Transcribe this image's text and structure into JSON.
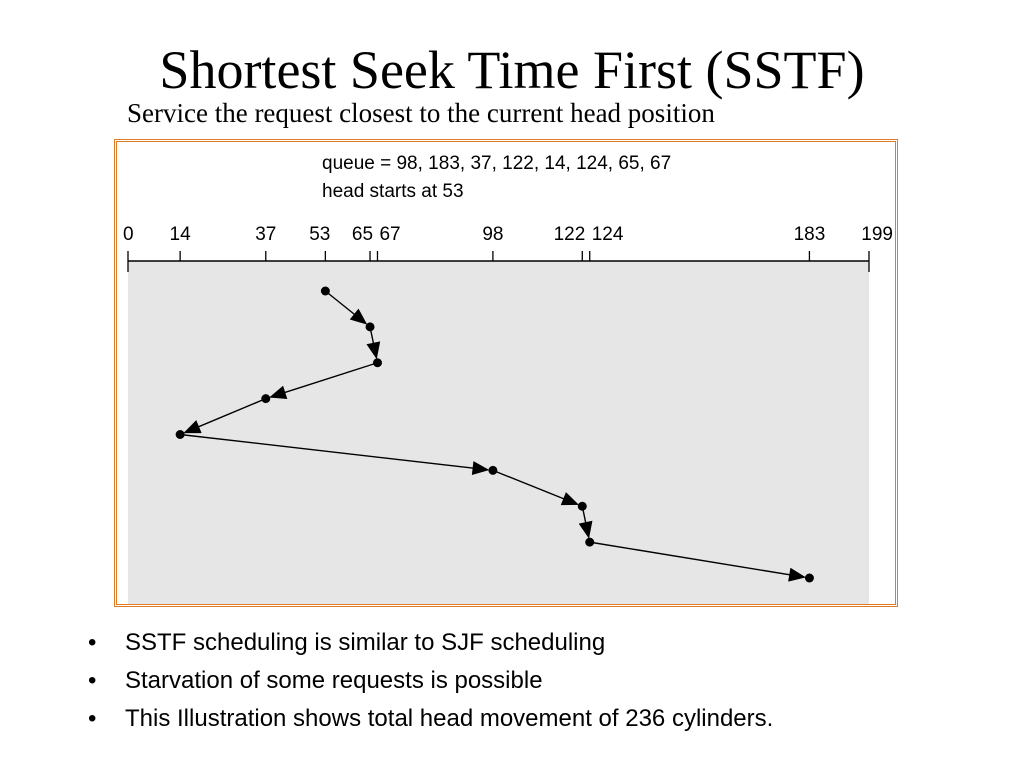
{
  "slide": {
    "title": "Shortest Seek Time First (SSTF)",
    "subtitle": "Service the request closest to the current head position",
    "bullets": [
      "SSTF scheduling is similar to SJF scheduling",
      "Starvation of some requests is possible",
      "This Illustration shows total head movement of 236 cylinders."
    ],
    "bullet_glyph": "•"
  },
  "figure": {
    "queue_text": "queue = 98, 183, 37, 122, 14, 124, 65, 67",
    "head_text": "head starts at 53",
    "axis_min": 0,
    "axis_max": 199,
    "tick_labels": [
      "0",
      "14",
      "37",
      "53",
      "65",
      "67",
      "98",
      "122",
      "124",
      "183",
      "199"
    ],
    "tick_values": [
      0,
      14,
      37,
      53,
      65,
      67,
      98,
      122,
      124,
      183,
      199
    ],
    "service_order": [
      53,
      65,
      67,
      37,
      14,
      98,
      122,
      124,
      183
    ],
    "colors": {
      "frame": "#e07b26",
      "plot_bg": "#e6e6e6",
      "line": "#000000"
    }
  }
}
